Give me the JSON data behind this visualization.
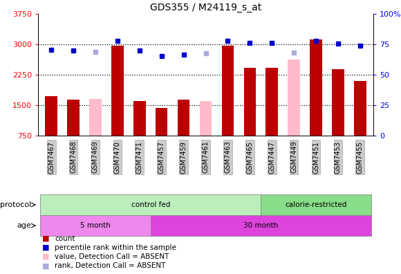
{
  "title": "GDS355 / M24119_s_at",
  "samples": [
    "GSM7467",
    "GSM7468",
    "GSM7469",
    "GSM7470",
    "GSM7471",
    "GSM7457",
    "GSM7459",
    "GSM7461",
    "GSM7463",
    "GSM7465",
    "GSM7447",
    "GSM7449",
    "GSM7451",
    "GSM7453",
    "GSM7455"
  ],
  "count_values": [
    1720,
    1640,
    null,
    2960,
    1600,
    1440,
    1640,
    null,
    2960,
    2420,
    2420,
    null,
    3120,
    2380,
    2100
  ],
  "count_absent_values": [
    null,
    null,
    1650,
    null,
    null,
    null,
    null,
    1600,
    null,
    null,
    null,
    2620,
    null,
    null,
    null
  ],
  "rank_values": [
    2870,
    2850,
    null,
    3080,
    2840,
    2710,
    2750,
    null,
    3080,
    3030,
    3030,
    null,
    3090,
    3020,
    2960
  ],
  "rank_absent_values": [
    null,
    null,
    2820,
    null,
    null,
    null,
    null,
    2770,
    null,
    null,
    null,
    2800,
    null,
    null,
    null
  ],
  "ylim_left": [
    750,
    3750
  ],
  "yticks_left": [
    750,
    1500,
    2250,
    3000,
    3750
  ],
  "yticks_right": [
    0,
    25,
    50,
    75,
    100
  ],
  "protocol_groups": [
    {
      "label": "control fed",
      "start": 0,
      "end": 10,
      "color": "#bbeebb"
    },
    {
      "label": "calorie-restricted",
      "start": 10,
      "end": 15,
      "color": "#88dd88"
    }
  ],
  "age_groups": [
    {
      "label": "5 month",
      "start": 0,
      "end": 5,
      "color": "#ee88ee"
    },
    {
      "label": "30 month",
      "start": 5,
      "end": 15,
      "color": "#dd44dd"
    }
  ],
  "bar_color": "#bb0000",
  "bar_absent_color": "#ffbbcc",
  "dot_color": "#0000cc",
  "dot_absent_color": "#aaaadd",
  "hgrid_at": [
    1500,
    2250,
    3000
  ],
  "bar_width": 0.55,
  "legend_items": [
    {
      "color": "#bb0000",
      "label": "count"
    },
    {
      "color": "#0000cc",
      "label": "percentile rank within the sample"
    },
    {
      "color": "#ffbbcc",
      "label": "value, Detection Call = ABSENT"
    },
    {
      "color": "#aaaadd",
      "label": "rank, Detection Call = ABSENT"
    }
  ]
}
